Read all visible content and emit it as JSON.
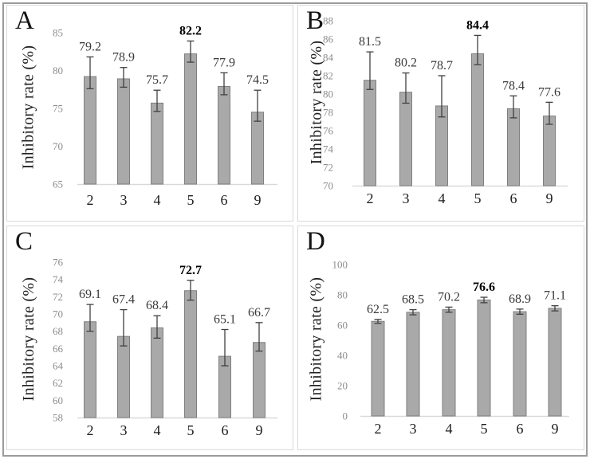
{
  "figure_title": "Inhibitory rate bar charts, panels A-D",
  "styles": {
    "bar_fill": "#a9a9a9",
    "bar_stroke": "#7f7f7f",
    "error_color": "#404040",
    "tick_color": "#8c8c8c",
    "value_label_color": "#3a3a3a",
    "bold_label_color": "#000000",
    "xlabel_color": "#1d1d1d",
    "baseline_color": "#d9d9d9",
    "panel_border": "#d9d9d9",
    "frame_border": "#9b9b9b"
  },
  "chart_data": [
    {
      "panel": "A",
      "type": "bar",
      "title": "A",
      "ylabel": "Inhibitory rate (%)",
      "xlabel": "",
      "categories": [
        "2",
        "3",
        "4",
        "5",
        "6",
        "9"
      ],
      "values": [
        79.2,
        78.9,
        75.7,
        82.2,
        77.9,
        74.5
      ],
      "err_up": [
        2.6,
        1.5,
        1.7,
        1.7,
        1.8,
        2.9
      ],
      "err_down": [
        1.6,
        1.1,
        1.1,
        1.1,
        1.1,
        1.2
      ],
      "ylim": [
        65,
        85
      ],
      "yticks": [
        65,
        70,
        75,
        80,
        85
      ],
      "bold_value_index": 3,
      "grid": false,
      "legend": false
    },
    {
      "panel": "B",
      "type": "bar",
      "title": "B",
      "ylabel": "Inhibitory rate (%)",
      "xlabel": "",
      "categories": [
        "2",
        "3",
        "4",
        "5",
        "6",
        "9"
      ],
      "values": [
        81.5,
        80.2,
        78.7,
        84.4,
        78.4,
        77.6
      ],
      "err_up": [
        3.1,
        2.1,
        3.3,
        2.0,
        1.4,
        1.5
      ],
      "err_down": [
        1.0,
        1.2,
        1.2,
        1.2,
        1.0,
        0.9
      ],
      "ylim": [
        70,
        88
      ],
      "yticks": [
        70,
        72,
        74,
        76,
        78,
        80,
        82,
        84,
        86,
        88
      ],
      "bold_value_index": 3,
      "grid": false,
      "legend": false
    },
    {
      "panel": "C",
      "type": "bar",
      "title": "C",
      "ylabel": "Inhibitory rate (%)",
      "xlabel": "",
      "categories": [
        "2",
        "3",
        "4",
        "5",
        "6",
        "9"
      ],
      "values": [
        69.1,
        67.4,
        68.4,
        72.7,
        65.1,
        66.7
      ],
      "err_up": [
        2.0,
        3.1,
        1.4,
        1.2,
        3.1,
        2.3
      ],
      "err_down": [
        1.1,
        1.1,
        1.2,
        1.1,
        1.1,
        1.0
      ],
      "ylim": [
        58,
        76
      ],
      "yticks": [
        58,
        60,
        62,
        64,
        66,
        68,
        70,
        72,
        74,
        76
      ],
      "bold_value_index": 3,
      "grid": false,
      "legend": false
    },
    {
      "panel": "D",
      "type": "bar",
      "title": "D",
      "ylabel": "Inhibitory rate (%)",
      "xlabel": "",
      "categories": [
        "2",
        "3",
        "4",
        "5",
        "6",
        "9"
      ],
      "values": [
        62.5,
        68.5,
        70.2,
        76.6,
        68.9,
        71.1
      ],
      "err_up": [
        1.3,
        1.7,
        1.7,
        1.8,
        1.7,
        1.7
      ],
      "err_down": [
        1.3,
        1.7,
        1.7,
        1.8,
        1.7,
        1.7
      ],
      "ylim": [
        0,
        100
      ],
      "yticks": [
        0,
        20,
        40,
        60,
        80,
        100
      ],
      "bold_value_index": 3,
      "grid": false,
      "legend": false
    }
  ]
}
